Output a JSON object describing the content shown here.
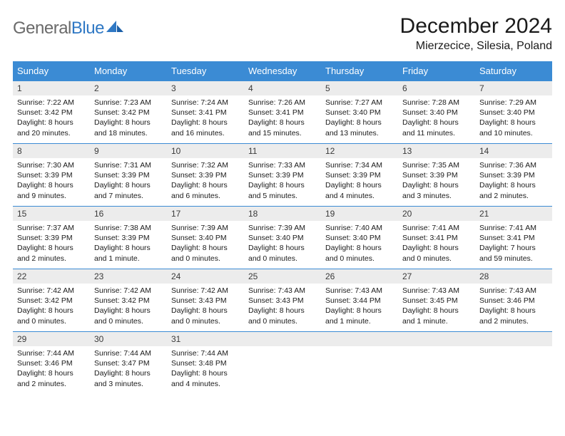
{
  "logo": {
    "text_gray": "General",
    "text_blue": "Blue"
  },
  "title": "December 2024",
  "location": "Mierzecice, Silesia, Poland",
  "colors": {
    "header_bg": "#3b8bd4",
    "header_text": "#ffffff",
    "daynum_bg": "#ececec",
    "border": "#3b8bd4",
    "logo_gray": "#6a6a6a",
    "logo_blue": "#2f78c4"
  },
  "weekday_labels": [
    "Sunday",
    "Monday",
    "Tuesday",
    "Wednesday",
    "Thursday",
    "Friday",
    "Saturday"
  ],
  "weeks": [
    [
      {
        "n": "1",
        "sr": "Sunrise: 7:22 AM",
        "ss": "Sunset: 3:42 PM",
        "dl1": "Daylight: 8 hours",
        "dl2": "and 20 minutes."
      },
      {
        "n": "2",
        "sr": "Sunrise: 7:23 AM",
        "ss": "Sunset: 3:42 PM",
        "dl1": "Daylight: 8 hours",
        "dl2": "and 18 minutes."
      },
      {
        "n": "3",
        "sr": "Sunrise: 7:24 AM",
        "ss": "Sunset: 3:41 PM",
        "dl1": "Daylight: 8 hours",
        "dl2": "and 16 minutes."
      },
      {
        "n": "4",
        "sr": "Sunrise: 7:26 AM",
        "ss": "Sunset: 3:41 PM",
        "dl1": "Daylight: 8 hours",
        "dl2": "and 15 minutes."
      },
      {
        "n": "5",
        "sr": "Sunrise: 7:27 AM",
        "ss": "Sunset: 3:40 PM",
        "dl1": "Daylight: 8 hours",
        "dl2": "and 13 minutes."
      },
      {
        "n": "6",
        "sr": "Sunrise: 7:28 AM",
        "ss": "Sunset: 3:40 PM",
        "dl1": "Daylight: 8 hours",
        "dl2": "and 11 minutes."
      },
      {
        "n": "7",
        "sr": "Sunrise: 7:29 AM",
        "ss": "Sunset: 3:40 PM",
        "dl1": "Daylight: 8 hours",
        "dl2": "and 10 minutes."
      }
    ],
    [
      {
        "n": "8",
        "sr": "Sunrise: 7:30 AM",
        "ss": "Sunset: 3:39 PM",
        "dl1": "Daylight: 8 hours",
        "dl2": "and 9 minutes."
      },
      {
        "n": "9",
        "sr": "Sunrise: 7:31 AM",
        "ss": "Sunset: 3:39 PM",
        "dl1": "Daylight: 8 hours",
        "dl2": "and 7 minutes."
      },
      {
        "n": "10",
        "sr": "Sunrise: 7:32 AM",
        "ss": "Sunset: 3:39 PM",
        "dl1": "Daylight: 8 hours",
        "dl2": "and 6 minutes."
      },
      {
        "n": "11",
        "sr": "Sunrise: 7:33 AM",
        "ss": "Sunset: 3:39 PM",
        "dl1": "Daylight: 8 hours",
        "dl2": "and 5 minutes."
      },
      {
        "n": "12",
        "sr": "Sunrise: 7:34 AM",
        "ss": "Sunset: 3:39 PM",
        "dl1": "Daylight: 8 hours",
        "dl2": "and 4 minutes."
      },
      {
        "n": "13",
        "sr": "Sunrise: 7:35 AM",
        "ss": "Sunset: 3:39 PM",
        "dl1": "Daylight: 8 hours",
        "dl2": "and 3 minutes."
      },
      {
        "n": "14",
        "sr": "Sunrise: 7:36 AM",
        "ss": "Sunset: 3:39 PM",
        "dl1": "Daylight: 8 hours",
        "dl2": "and 2 minutes."
      }
    ],
    [
      {
        "n": "15",
        "sr": "Sunrise: 7:37 AM",
        "ss": "Sunset: 3:39 PM",
        "dl1": "Daylight: 8 hours",
        "dl2": "and 2 minutes."
      },
      {
        "n": "16",
        "sr": "Sunrise: 7:38 AM",
        "ss": "Sunset: 3:39 PM",
        "dl1": "Daylight: 8 hours",
        "dl2": "and 1 minute."
      },
      {
        "n": "17",
        "sr": "Sunrise: 7:39 AM",
        "ss": "Sunset: 3:40 PM",
        "dl1": "Daylight: 8 hours",
        "dl2": "and 0 minutes."
      },
      {
        "n": "18",
        "sr": "Sunrise: 7:39 AM",
        "ss": "Sunset: 3:40 PM",
        "dl1": "Daylight: 8 hours",
        "dl2": "and 0 minutes."
      },
      {
        "n": "19",
        "sr": "Sunrise: 7:40 AM",
        "ss": "Sunset: 3:40 PM",
        "dl1": "Daylight: 8 hours",
        "dl2": "and 0 minutes."
      },
      {
        "n": "20",
        "sr": "Sunrise: 7:41 AM",
        "ss": "Sunset: 3:41 PM",
        "dl1": "Daylight: 8 hours",
        "dl2": "and 0 minutes."
      },
      {
        "n": "21",
        "sr": "Sunrise: 7:41 AM",
        "ss": "Sunset: 3:41 PM",
        "dl1": "Daylight: 7 hours",
        "dl2": "and 59 minutes."
      }
    ],
    [
      {
        "n": "22",
        "sr": "Sunrise: 7:42 AM",
        "ss": "Sunset: 3:42 PM",
        "dl1": "Daylight: 8 hours",
        "dl2": "and 0 minutes."
      },
      {
        "n": "23",
        "sr": "Sunrise: 7:42 AM",
        "ss": "Sunset: 3:42 PM",
        "dl1": "Daylight: 8 hours",
        "dl2": "and 0 minutes."
      },
      {
        "n": "24",
        "sr": "Sunrise: 7:42 AM",
        "ss": "Sunset: 3:43 PM",
        "dl1": "Daylight: 8 hours",
        "dl2": "and 0 minutes."
      },
      {
        "n": "25",
        "sr": "Sunrise: 7:43 AM",
        "ss": "Sunset: 3:43 PM",
        "dl1": "Daylight: 8 hours",
        "dl2": "and 0 minutes."
      },
      {
        "n": "26",
        "sr": "Sunrise: 7:43 AM",
        "ss": "Sunset: 3:44 PM",
        "dl1": "Daylight: 8 hours",
        "dl2": "and 1 minute."
      },
      {
        "n": "27",
        "sr": "Sunrise: 7:43 AM",
        "ss": "Sunset: 3:45 PM",
        "dl1": "Daylight: 8 hours",
        "dl2": "and 1 minute."
      },
      {
        "n": "28",
        "sr": "Sunrise: 7:43 AM",
        "ss": "Sunset: 3:46 PM",
        "dl1": "Daylight: 8 hours",
        "dl2": "and 2 minutes."
      }
    ],
    [
      {
        "n": "29",
        "sr": "Sunrise: 7:44 AM",
        "ss": "Sunset: 3:46 PM",
        "dl1": "Daylight: 8 hours",
        "dl2": "and 2 minutes."
      },
      {
        "n": "30",
        "sr": "Sunrise: 7:44 AM",
        "ss": "Sunset: 3:47 PM",
        "dl1": "Daylight: 8 hours",
        "dl2": "and 3 minutes."
      },
      {
        "n": "31",
        "sr": "Sunrise: 7:44 AM",
        "ss": "Sunset: 3:48 PM",
        "dl1": "Daylight: 8 hours",
        "dl2": "and 4 minutes."
      },
      null,
      null,
      null,
      null
    ]
  ]
}
